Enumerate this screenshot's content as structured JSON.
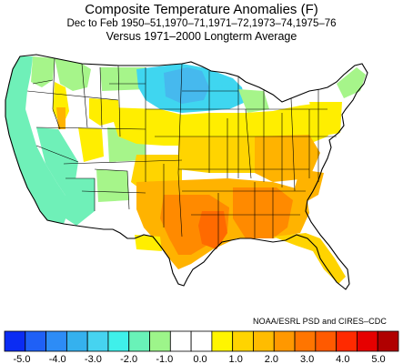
{
  "title": "Composite Temperature Anomalies (F)",
  "subtitle": "Dec to Feb  1950–51,1970–71,1971–72,1973–74,1975–76",
  "subtitle2": "Versus 1971–2000 Longterm Average",
  "credit": "NOAA/ESRL PSD and CIRES–CDC",
  "colorbar": {
    "colors": [
      "#0b2cf3",
      "#1f60f6",
      "#2d8cf6",
      "#35b1ee",
      "#46d3f0",
      "#3ff0ea",
      "#69f2b8",
      "#9df58a",
      "#ffffff",
      "#ffffff",
      "#fff500",
      "#ffd400",
      "#ffbc00",
      "#ff9800",
      "#ff7500",
      "#ff5a00",
      "#ff2a00",
      "#e60000",
      "#b00000"
    ],
    "tick_labels": [
      "-5.0",
      "-4.0",
      "-3.0",
      "-2.0",
      "-1.0",
      "0.0",
      "1.0",
      "2.0",
      "3.0",
      "4.0",
      "5.0"
    ]
  },
  "map_colors": {
    "cold_strong": "#46b9ee",
    "cold": "#3fd6f0",
    "cool": "#6ff0b8",
    "cool_light": "#a6f58a",
    "neutral": "#ffffff",
    "warm_light": "#ffee00",
    "warm": "#ffd400",
    "warmer": "#ffb300",
    "hot": "#ff8a00",
    "hottest": "#ff6a00",
    "border": "#000000"
  }
}
